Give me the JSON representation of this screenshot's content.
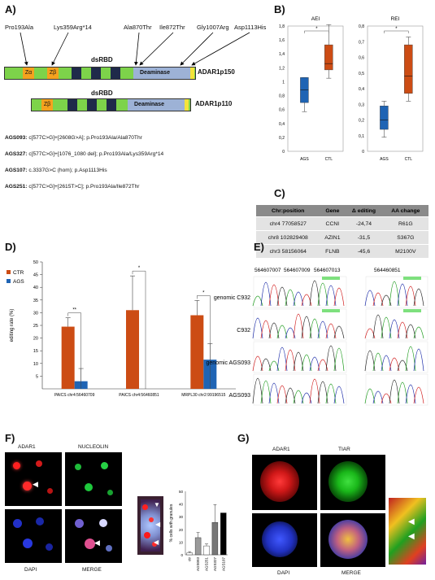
{
  "panels": {
    "a": "A)",
    "b": "B)",
    "c": "C)",
    "d": "D)",
    "e": "E)",
    "f": "F)",
    "g": "G)"
  },
  "panel_a": {
    "mutations": [
      "Pro193Ala",
      "Lys359Arg*14",
      "Ala870Thr",
      "Ile872Thr",
      "Gly1007Arg",
      "Asp1113His"
    ],
    "dsrbd_label": "dsRBD",
    "z_alpha": "Zα",
    "z_beta": "Zβ",
    "deaminase": "Deaminase",
    "p150_label": "ADAR1p150",
    "p110_label": "ADAR1p110",
    "patients": [
      {
        "id": "AGS093:",
        "text": " c[577C>G]+[2608G>A]; p.Pro193Ala/Ala870Thr"
      },
      {
        "id": "AGS327:",
        "text": " c[577C>G]+[1076_1080 del]; p.Pro193Ala/Lys359Arg*14"
      },
      {
        "id": "AGS107:",
        "text": " c.3337G>C (hom); p.Asp1113His"
      },
      {
        "id": "AGS251:",
        "text": " c[577C>G]+[2615T>C]; p.Pro193Ala/Ile872Thr"
      }
    ]
  },
  "chart_data": [
    {
      "type": "box",
      "title": "AEI",
      "categories": [
        "AGS",
        "CTL"
      ],
      "ylim": [
        0,
        1.8
      ],
      "ticks": [
        "0",
        "0,2",
        "0,4",
        "0,6",
        "0,8",
        "1",
        "1,2",
        "1,4",
        "1,6",
        "1,8"
      ],
      "significance": "*",
      "boxes": [
        {
          "min": 0.57,
          "q1": 0.7,
          "median": 0.88,
          "q3": 1.06,
          "max": 1.06,
          "color": "#1f64b4"
        },
        {
          "min": 1.05,
          "q1": 1.17,
          "median": 1.26,
          "q3": 1.53,
          "max": 1.82,
          "color": "#cc4c14"
        }
      ]
    },
    {
      "type": "box",
      "title": "REI",
      "categories": [
        "AGS",
        "CTL"
      ],
      "ylim": [
        0,
        0.8
      ],
      "ticks": [
        "0",
        "0,1",
        "0,2",
        "0,3",
        "0,4",
        "0,5",
        "0,6",
        "0,7",
        "0,8"
      ],
      "significance": "*",
      "boxes": [
        {
          "min": 0.09,
          "q1": 0.14,
          "median": 0.2,
          "q3": 0.29,
          "max": 0.32,
          "color": "#1f64b4"
        },
        {
          "min": 0.32,
          "q1": 0.37,
          "median": 0.48,
          "q3": 0.68,
          "max": 0.73,
          "color": "#cc4c14"
        }
      ]
    },
    {
      "type": "bar",
      "ylabel": "editing rate (%)",
      "ylim": [
        0,
        50
      ],
      "ticks": [
        "5",
        "10",
        "15",
        "20",
        "25",
        "30",
        "35",
        "40",
        "45",
        "50"
      ],
      "categories": [
        "PAICS chr4:56460709",
        "PAICS chr4:56460851",
        "MRPL30 chr2:99196515"
      ],
      "series": [
        {
          "name": "CTR",
          "color": "#cc4c14",
          "values": [
            24.5,
            31,
            29
          ],
          "errors": [
            3.5,
            13.5,
            5.8
          ]
        },
        {
          "name": "AGS",
          "color": "#1f64b4",
          "values": [
            3,
            0,
            11.5
          ],
          "errors": [
            5,
            0,
            6.3
          ]
        }
      ],
      "significance": [
        "**",
        "*",
        "*"
      ]
    },
    {
      "type": "bar",
      "ylabel": "% cells with granules",
      "ylim": [
        0,
        50
      ],
      "ticks": [
        "0",
        "10",
        "20",
        "30",
        "40",
        "50"
      ],
      "categories": [
        "ctr",
        "AGS093",
        "AGS251",
        "AGS327",
        "AGS107"
      ],
      "values": [
        1.5,
        13.5,
        7,
        25.5,
        33
      ],
      "errors": [
        1,
        4,
        1.5,
        14,
        0
      ],
      "colors": [
        "#ffffff",
        "#9a9a9a",
        "#ffffff",
        "#777777",
        "#000000"
      ]
    }
  ],
  "panel_c": {
    "headers": [
      "Chr:position",
      "Gene",
      "Δ editing",
      "AA change"
    ],
    "rows": [
      [
        "chr4 77058527",
        "CCNI",
        "-24,74",
        "R61G"
      ],
      [
        "chr8 102829408",
        "AZIN1",
        "-31,5",
        "S367G"
      ],
      [
        "chr3 58156064",
        "FLNB",
        "-45,6",
        "M2100V"
      ]
    ]
  },
  "panel_e": {
    "positions": [
      "564607007",
      "564607009",
      "564607013"
    ],
    "position_right": "564460851",
    "rows": [
      "genomic C932",
      "C932",
      "genomic AGS093",
      "AGS093"
    ]
  },
  "panel_f": {
    "adar1": "ADAR1",
    "nucleolin": "NUCLEOLIN",
    "dapi": "DAPI",
    "merge": "MERGE"
  },
  "panel_g": {
    "adar1": "ADAR1",
    "tiar": "TIAR",
    "dapi": "DAPI",
    "merge": "MERGE"
  }
}
